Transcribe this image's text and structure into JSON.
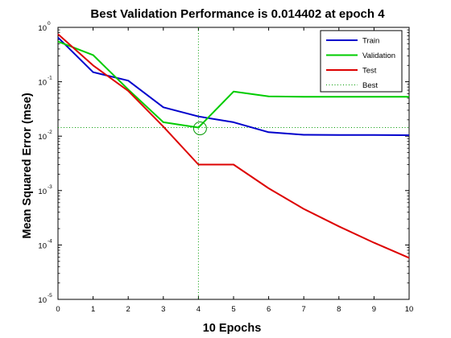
{
  "chart_data": {
    "type": "line",
    "title": "Best Validation Performance is 0.014402 at epoch 4",
    "xlabel": "10 Epochs",
    "ylabel": "Mean Squared Error  (mse)",
    "xlim": [
      0,
      10
    ],
    "ylim": [
      1e-05,
      1
    ],
    "yscale": "log",
    "x_ticks": [
      "0",
      "1",
      "2",
      "3",
      "4",
      "5",
      "6",
      "7",
      "8",
      "9",
      "10"
    ],
    "y_ticks": [
      {
        "value": 1,
        "base": "10",
        "exp": "0"
      },
      {
        "value": 0.1,
        "base": "10",
        "exp": "-1"
      },
      {
        "value": 0.01,
        "base": "10",
        "exp": "-2"
      },
      {
        "value": 0.001,
        "base": "10",
        "exp": "-3"
      },
      {
        "value": 0.0001,
        "base": "10",
        "exp": "-4"
      },
      {
        "value": 1e-05,
        "base": "10",
        "exp": "-5"
      }
    ],
    "grid": false,
    "legend_position": "top-right",
    "series": [
      {
        "name": "Train",
        "color": "#0000cc",
        "style": "solid",
        "x": [
          0,
          1,
          2,
          3,
          4,
          5,
          6,
          7,
          8,
          9,
          10
        ],
        "y": [
          0.65,
          0.15,
          0.105,
          0.034,
          0.023,
          0.018,
          0.0118,
          0.0106,
          0.0105,
          0.0105,
          0.0104
        ]
      },
      {
        "name": "Validation",
        "color": "#00cc00",
        "style": "solid",
        "x": [
          0,
          1,
          2,
          3,
          4,
          5,
          6,
          7,
          8,
          9,
          10
        ],
        "y": [
          0.55,
          0.31,
          0.072,
          0.018,
          0.014402,
          0.066,
          0.054,
          0.053,
          0.053,
          0.053,
          0.053
        ]
      },
      {
        "name": "Test",
        "color": "#dd0000",
        "style": "solid",
        "x": [
          0,
          1,
          2,
          3,
          4,
          5,
          6,
          7,
          8,
          9,
          10
        ],
        "y": [
          0.75,
          0.2,
          0.068,
          0.015,
          0.003,
          0.003,
          0.0011,
          0.00046,
          0.00022,
          0.00011,
          5.8e-05
        ]
      }
    ],
    "best": {
      "name": "Best",
      "epoch": 4,
      "value": 0.014402,
      "color": "#009900",
      "style": "dotted"
    }
  }
}
